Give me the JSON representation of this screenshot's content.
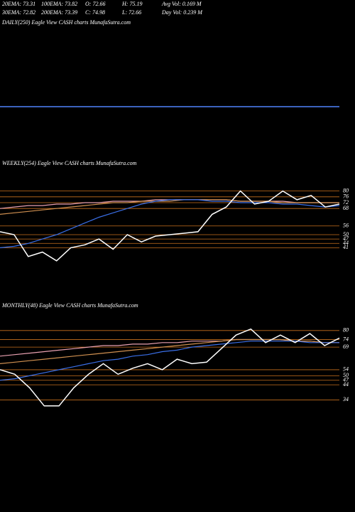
{
  "header": {
    "row1": [
      "20EMA: 73.31",
      "100EMA: 73.82",
      "O: 72.66",
      "H: 75.19",
      "Avg Vol: 0.169 M"
    ],
    "row2": [
      "30EMA: 72.82",
      "200EMA: 73.39",
      "C: 74.98",
      "L: 72.66",
      "Day Vol: 0.239 M"
    ]
  },
  "chart_data": [
    {
      "type": "line",
      "title": "DAILY(250) Eagle View CASH charts MunafaSutra.com",
      "ylim": [
        0,
        146
      ],
      "series": [
        {
          "color": "#ffffff",
          "values": [
            73,
            73,
            73,
            73,
            73,
            73,
            73,
            73,
            73,
            73,
            73,
            73
          ]
        },
        {
          "color": "#3a6fe8",
          "values": [
            73,
            73,
            73,
            73,
            73,
            73,
            73,
            73,
            73,
            73,
            73,
            73
          ]
        }
      ]
    },
    {
      "type": "line",
      "title": "WEEKLY(254) Eagle View CASH charts MunafaSutra.com",
      "ylim": [
        28,
        94
      ],
      "yticks": [
        80,
        76,
        72,
        68,
        56,
        50,
        47,
        44,
        41
      ],
      "grid_color": "#c8701e",
      "series": [
        {
          "color": "#e8a0b0",
          "values": [
            68,
            69,
            70,
            70,
            71,
            71,
            72,
            72,
            73,
            73,
            73,
            74,
            74,
            74,
            74,
            74,
            74,
            73,
            73,
            73,
            73,
            72,
            72,
            72,
            72
          ]
        },
        {
          "color": "#d09050",
          "values": [
            64,
            65,
            66,
            67,
            68,
            69,
            70,
            71,
            72,
            72,
            73,
            73,
            73,
            74,
            74,
            74,
            74,
            73,
            73,
            73,
            72,
            72,
            72,
            72,
            72
          ]
        },
        {
          "color": "#3a6fe8",
          "values": [
            41,
            42,
            44,
            47,
            50,
            54,
            58,
            62,
            65,
            68,
            71,
            73,
            74,
            74,
            74,
            73,
            73,
            72,
            72,
            72,
            71,
            71,
            70,
            69,
            70
          ]
        },
        {
          "color": "#ffffff",
          "values": [
            52,
            50,
            35,
            38,
            32,
            41,
            43,
            47,
            40,
            50,
            45,
            49,
            50,
            51,
            52,
            64,
            69,
            80,
            71,
            73,
            80,
            74,
            77,
            69,
            71
          ]
        }
      ]
    },
    {
      "type": "line",
      "title": "MONTHLY(48) Eagle View CASH charts MunafaSutra.com",
      "ylim": [
        28,
        87
      ],
      "yticks": [
        80,
        74,
        69,
        54,
        50,
        47,
        44,
        34
      ],
      "grid_color": "#c8701e",
      "series": [
        {
          "color": "#e8a0b0",
          "values": [
            63,
            64,
            65,
            66,
            67,
            68,
            69,
            70,
            70,
            71,
            71,
            72,
            72,
            73,
            73,
            73,
            74,
            74,
            74,
            74,
            73,
            73,
            72,
            72
          ]
        },
        {
          "color": "#d09050",
          "values": [
            58,
            59,
            60,
            61,
            62,
            63,
            64,
            65,
            66,
            67,
            68,
            69,
            70,
            71,
            72,
            73,
            74,
            74,
            74,
            74,
            73,
            73,
            72,
            72
          ]
        },
        {
          "color": "#3a6fe8",
          "values": [
            47,
            48,
            50,
            52,
            54,
            56,
            58,
            60,
            61,
            63,
            64,
            66,
            67,
            69,
            70,
            71,
            72,
            73,
            73,
            73,
            73,
            72,
            72,
            72
          ]
        },
        {
          "color": "#ffffff",
          "values": [
            54,
            51,
            42,
            30,
            30,
            42,
            51,
            58,
            51,
            55,
            58,
            54,
            61,
            58,
            59,
            68,
            77,
            81,
            72,
            77,
            72,
            78,
            70,
            75
          ]
        }
      ]
    }
  ]
}
